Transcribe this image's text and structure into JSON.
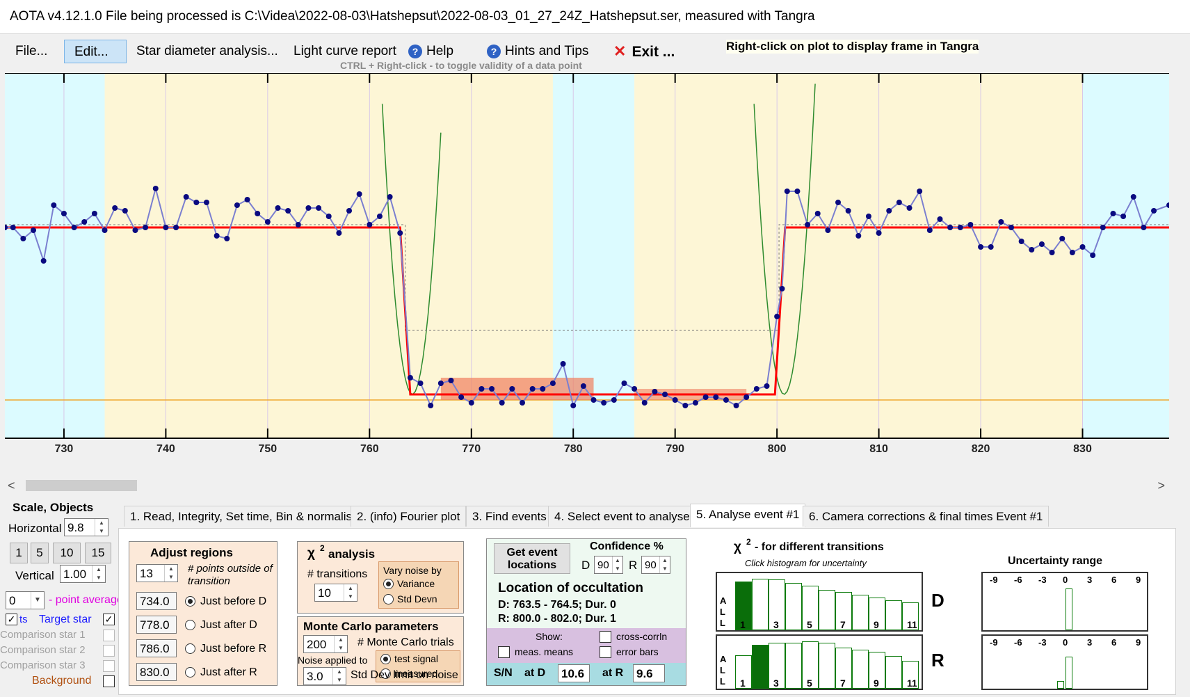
{
  "window": {
    "title": "AOTA v4.12.1.0    File being processed is C:\\Videa\\2022-08-03\\Hatshepsut\\2022-08-03_01_27_24Z_Hatshepsut.ser, measured with Tangra"
  },
  "menu": {
    "file": "File...",
    "edit": "Edit...",
    "star_diameter": "Star diameter analysis...",
    "light_curve": "Light curve report",
    "help": "Help",
    "hints": "Hints and Tips",
    "exit": "Exit ...",
    "right_click_tip": "Right-click on plot to display frame in Tangra",
    "ctrl_tip": "CTRL + Right-click  -  to toggle validity of a data point"
  },
  "plot": {
    "x_ticks": [
      "730",
      "740",
      "750",
      "760",
      "770",
      "780",
      "790",
      "800",
      "810",
      "820",
      "830"
    ],
    "x_range": [
      724.2,
      838.5
    ],
    "y_range": [
      0,
      100
    ],
    "regions": [
      {
        "type": "outside",
        "from": 724.2,
        "to": 734.0
      },
      {
        "type": "baseline",
        "from": 734.0,
        "to": 778.0
      },
      {
        "type": "outside",
        "from": 778.0,
        "to": 786.0
      },
      {
        "type": "baseline",
        "from": 786.0,
        "to": 830.0
      },
      {
        "type": "outside",
        "from": 830.0,
        "to": 838.5
      }
    ],
    "series": [
      {
        "x": 724.2,
        "y": 62
      },
      {
        "x": 725,
        "y": 62
      },
      {
        "x": 726,
        "y": 58
      },
      {
        "x": 727,
        "y": 61
      },
      {
        "x": 728,
        "y": 50
      },
      {
        "x": 729,
        "y": 70
      },
      {
        "x": 730,
        "y": 67
      },
      {
        "x": 731,
        "y": 62
      },
      {
        "x": 732,
        "y": 64
      },
      {
        "x": 733,
        "y": 67
      },
      {
        "x": 734,
        "y": 61
      },
      {
        "x": 735,
        "y": 69
      },
      {
        "x": 736,
        "y": 68
      },
      {
        "x": 737,
        "y": 61
      },
      {
        "x": 738,
        "y": 62
      },
      {
        "x": 739,
        "y": 76
      },
      {
        "x": 740,
        "y": 62
      },
      {
        "x": 741,
        "y": 62
      },
      {
        "x": 742,
        "y": 73
      },
      {
        "x": 743,
        "y": 71
      },
      {
        "x": 744,
        "y": 71
      },
      {
        "x": 745,
        "y": 59
      },
      {
        "x": 746,
        "y": 58
      },
      {
        "x": 747,
        "y": 70
      },
      {
        "x": 748,
        "y": 72
      },
      {
        "x": 749,
        "y": 67
      },
      {
        "x": 750,
        "y": 64
      },
      {
        "x": 751,
        "y": 69
      },
      {
        "x": 752,
        "y": 68
      },
      {
        "x": 753,
        "y": 63
      },
      {
        "x": 754,
        "y": 69
      },
      {
        "x": 755,
        "y": 69
      },
      {
        "x": 756,
        "y": 66
      },
      {
        "x": 757,
        "y": 60
      },
      {
        "x": 758,
        "y": 68
      },
      {
        "x": 759,
        "y": 74
      },
      {
        "x": 760,
        "y": 63
      },
      {
        "x": 761,
        "y": 66
      },
      {
        "x": 762,
        "y": 73
      },
      {
        "x": 763,
        "y": 60
      },
      {
        "x": 764,
        "y": 8
      },
      {
        "x": 765,
        "y": 6
      },
      {
        "x": 766,
        "y": -2
      },
      {
        "x": 767,
        "y": 6
      },
      {
        "x": 768,
        "y": 7
      },
      {
        "x": 769,
        "y": 1
      },
      {
        "x": 770,
        "y": -1
      },
      {
        "x": 771,
        "y": 4
      },
      {
        "x": 772,
        "y": 4
      },
      {
        "x": 773,
        "y": -1
      },
      {
        "x": 774,
        "y": 4
      },
      {
        "x": 775,
        "y": -1
      },
      {
        "x": 776,
        "y": 4
      },
      {
        "x": 777,
        "y": 4
      },
      {
        "x": 778,
        "y": 6
      },
      {
        "x": 779,
        "y": 13
      },
      {
        "x": 780,
        "y": -2
      },
      {
        "x": 781,
        "y": 5
      },
      {
        "x": 782,
        "y": 0
      },
      {
        "x": 783,
        "y": -1
      },
      {
        "x": 784,
        "y": 0
      },
      {
        "x": 785,
        "y": 6
      },
      {
        "x": 786,
        "y": 4
      },
      {
        "x": 787,
        "y": -1
      },
      {
        "x": 788,
        "y": 3
      },
      {
        "x": 789,
        "y": 2
      },
      {
        "x": 790,
        "y": 0
      },
      {
        "x": 791,
        "y": -2
      },
      {
        "x": 792,
        "y": -1
      },
      {
        "x": 793,
        "y": 1
      },
      {
        "x": 794,
        "y": 1
      },
      {
        "x": 795,
        "y": 0
      },
      {
        "x": 796,
        "y": -2
      },
      {
        "x": 797,
        "y": 1
      },
      {
        "x": 798,
        "y": 4
      },
      {
        "x": 799,
        "y": 5
      },
      {
        "x": 800,
        "y": 30
      },
      {
        "x": 800.5,
        "y": 40
      },
      {
        "x": 801,
        "y": 75
      },
      {
        "x": 802,
        "y": 75
      },
      {
        "x": 803,
        "y": 63
      },
      {
        "x": 804,
        "y": 67
      },
      {
        "x": 805,
        "y": 61
      },
      {
        "x": 806,
        "y": 71
      },
      {
        "x": 807,
        "y": 68
      },
      {
        "x": 808,
        "y": 59
      },
      {
        "x": 809,
        "y": 66
      },
      {
        "x": 810,
        "y": 60
      },
      {
        "x": 811,
        "y": 68
      },
      {
        "x": 812,
        "y": 71
      },
      {
        "x": 813,
        "y": 69
      },
      {
        "x": 814,
        "y": 75
      },
      {
        "x": 815,
        "y": 61
      },
      {
        "x": 816,
        "y": 65
      },
      {
        "x": 817,
        "y": 62
      },
      {
        "x": 818,
        "y": 62
      },
      {
        "x": 819,
        "y": 63
      },
      {
        "x": 820,
        "y": 55
      },
      {
        "x": 821,
        "y": 55
      },
      {
        "x": 822,
        "y": 64
      },
      {
        "x": 823,
        "y": 62
      },
      {
        "x": 824,
        "y": 57
      },
      {
        "x": 825,
        "y": 54
      },
      {
        "x": 826,
        "y": 56
      },
      {
        "x": 827,
        "y": 53
      },
      {
        "x": 828,
        "y": 58
      },
      {
        "x": 829,
        "y": 53
      },
      {
        "x": 830,
        "y": 55
      },
      {
        "x": 831,
        "y": 52
      },
      {
        "x": 832,
        "y": 62
      },
      {
        "x": 833,
        "y": 67
      },
      {
        "x": 834,
        "y": 66
      },
      {
        "x": 835,
        "y": 73
      },
      {
        "x": 836,
        "y": 62
      },
      {
        "x": 837,
        "y": 68
      },
      {
        "x": 838.5,
        "y": 70
      }
    ],
    "model": {
      "baseline": 62,
      "event": 2,
      "d_start": 763.0,
      "d_end": 764.0,
      "r_start": 799.8,
      "r_end": 800.8
    },
    "colors": {
      "outside": "#dcfbff",
      "baseline": "#fdf6d6",
      "series": "#7b7fd0",
      "points": "#0a0a80",
      "model": "#ff0000",
      "fit": "#2e8b2e",
      "orange": "#f0a830"
    }
  },
  "scale_panel": {
    "title": "Scale, Objects",
    "horizontal_label": "Horizontal",
    "horizontal_value": "9.8",
    "buttons": [
      "1",
      "5",
      "10",
      "15"
    ],
    "vertical_label": "Vertical",
    "vertical_value": "1.00",
    "point_avg_value": "0",
    "point_avg_label": "- point average",
    "objects": [
      {
        "label": "Target star",
        "prefix": "ts",
        "checked": true
      },
      {
        "label": "Comparison star 1",
        "checked": false
      },
      {
        "label": "Comparison star 2",
        "checked": false
      },
      {
        "label": "Comparison star 3",
        "checked": false
      },
      {
        "label": "Background",
        "checked": false
      }
    ]
  },
  "tabs": [
    "1.  Read, Integrity, Set time, Bin & normalise",
    "2. (info)  Fourier plot",
    "3. Find events",
    "4. Select event to analyse",
    "5. Analyse event #1",
    "6. Camera corrections & final times Event #1"
  ],
  "adjust_regions": {
    "title": "Adjust regions",
    "points_value": "13",
    "points_label": "# points outside of transition",
    "rows": [
      {
        "value": "734.0",
        "label": "Just before D",
        "on": true
      },
      {
        "value": "778.0",
        "label": "Just after D",
        "on": false
      },
      {
        "value": "786.0",
        "label": "Just before R",
        "on": false
      },
      {
        "value": "830.0",
        "label": "Just after R",
        "on": false
      }
    ]
  },
  "chi2": {
    "title": "χ",
    "title_rest": "analysis",
    "transitions_label": "# transitions",
    "transitions_value": "10",
    "vary_noise": "Vary noise by",
    "variance": "Variance",
    "std_devn": "Std Devn"
  },
  "monte_carlo": {
    "title": "Monte Carlo parameters",
    "trials_value": "200",
    "trials_label": "# Monte Carlo trials",
    "noise_applied": "Noise applied to",
    "test_signal": "test signal",
    "measured": "measured",
    "stddev_value": "3.0",
    "stddev_label": "Std Dev limit on noise"
  },
  "location": {
    "get_btn": "Get event locations",
    "conf_title": "Confidence %",
    "d_label": "D",
    "d_value": "90",
    "r_label": "R",
    "r_value": "90",
    "title": "Location of occultation",
    "d_line": "D: 763.5 - 764.5; Dur. 0",
    "r_line": "R: 800.0 - 802.0; Dur. 1",
    "show": "Show:",
    "meas_means": "meas. means",
    "cross_corr": "cross-corrln",
    "error_bars": "error bars",
    "sn": "S/N",
    "at_d": "at D",
    "sn_d": "10.6",
    "at_r": "at R",
    "sn_r": "9.6"
  },
  "chi2_hist": {
    "title": "χ",
    "title_rest": "- for different transitions",
    "subtitle": "Click histogram for uncertainty",
    "all": "A L L",
    "labels": [
      "1",
      "3",
      "5",
      "7",
      "9",
      "11"
    ],
    "d": {
      "label": "D",
      "values": [
        0.95,
        1.0,
        0.98,
        0.92,
        0.86,
        0.79,
        0.74,
        0.69,
        0.63,
        0.58,
        0.54
      ],
      "selected": 0
    },
    "r": {
      "label": "R",
      "values": [
        0.7,
        0.92,
        0.97,
        0.97,
        1.0,
        0.97,
        0.87,
        0.83,
        0.78,
        0.69,
        0.59
      ],
      "selected": 1
    }
  },
  "uncertainty": {
    "title": "Uncertainty range",
    "ticks": [
      "-9",
      "-6",
      "-3",
      "0",
      "3",
      "6",
      "9"
    ],
    "d_values": [
      1.0
    ],
    "r_values": [
      0.2,
      0.85
    ]
  }
}
